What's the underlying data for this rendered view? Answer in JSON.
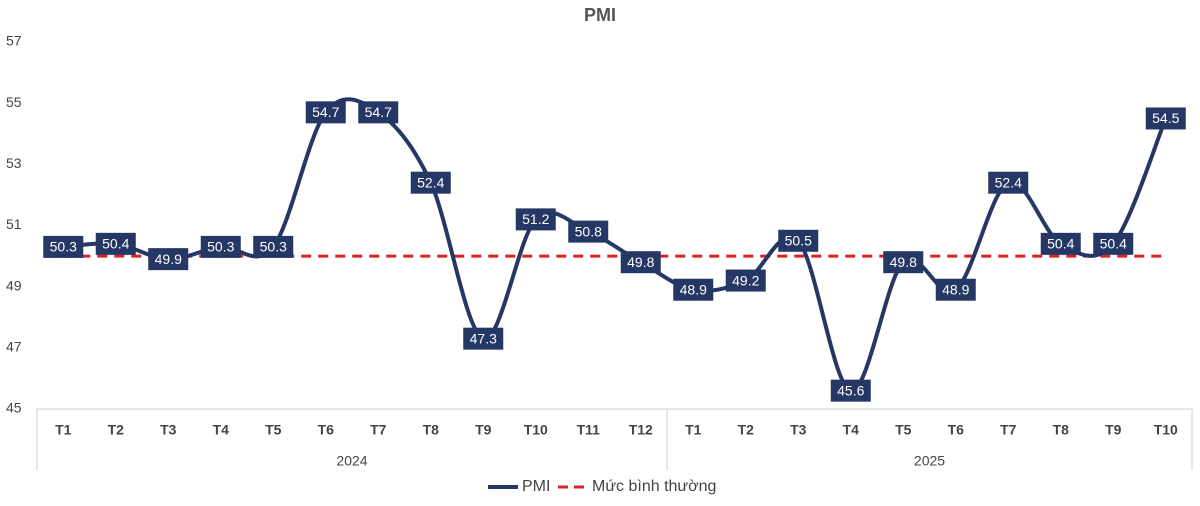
{
  "chart_data": {
    "type": "line",
    "title": "PMI",
    "groups": [
      {
        "label": "2024",
        "categories": [
          "T1",
          "T2",
          "T3",
          "T4",
          "T5",
          "T6",
          "T7",
          "T8",
          "T9",
          "T10",
          "T11",
          "T12"
        ]
      },
      {
        "label": "2025",
        "categories": [
          "T1",
          "T2",
          "T3",
          "T4",
          "T5",
          "T6",
          "T7",
          "T8",
          "T9",
          "T10"
        ]
      }
    ],
    "series": [
      {
        "name": "PMI",
        "color": "#253765",
        "values": [
          50.3,
          50.4,
          49.9,
          50.3,
          50.3,
          54.7,
          54.7,
          52.4,
          47.3,
          51.2,
          50.8,
          49.8,
          48.9,
          49.2,
          50.5,
          45.6,
          49.8,
          48.9,
          52.4,
          50.4,
          50.4,
          54.5
        ]
      }
    ],
    "reference_line": {
      "name": "Mức bình thường",
      "value": 50,
      "color": "#e02020"
    },
    "ylim": [
      45,
      57
    ],
    "yticks": [
      45,
      47,
      49,
      51,
      53,
      55,
      57
    ],
    "grid": false
  }
}
